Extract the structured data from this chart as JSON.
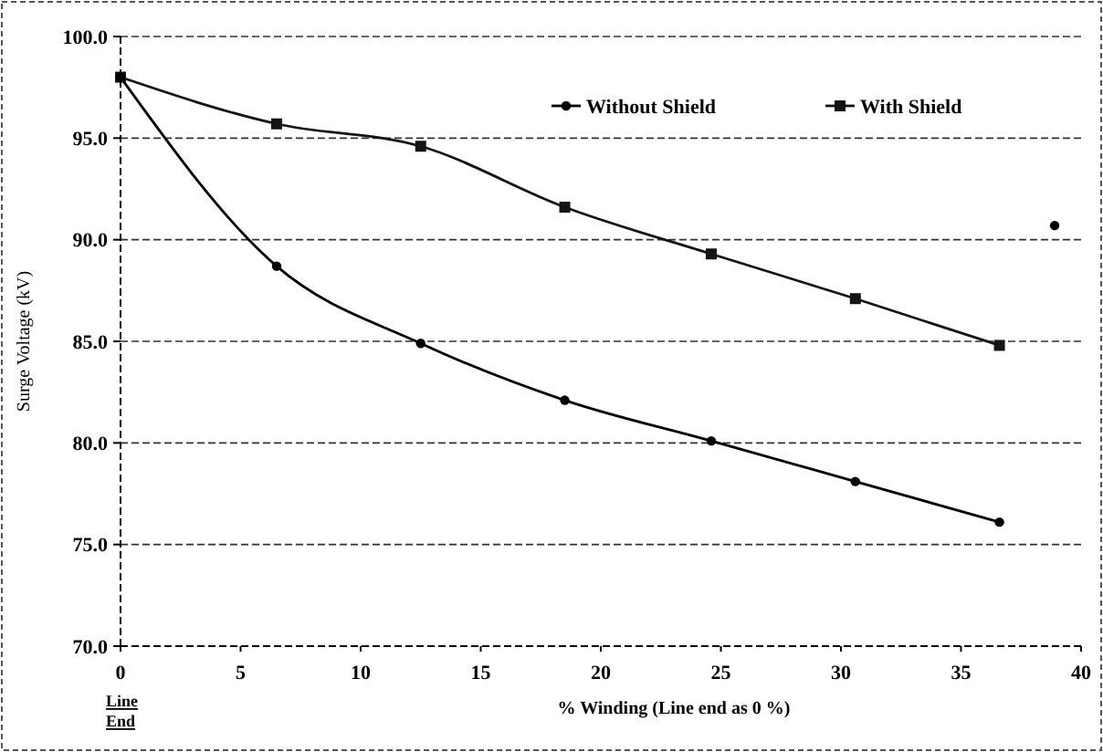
{
  "chart_data": {
    "type": "line",
    "xlabel": "% Winding (Line end as 0 %)",
    "ylabel": "Surge Voltage (kV)",
    "x": [
      0,
      6.5,
      12.5,
      18.5,
      24.6,
      30.6,
      36.6
    ],
    "series": [
      {
        "name": "Without Shield",
        "color": "#000000",
        "marker": "circle",
        "values": [
          98.0,
          88.7,
          84.9,
          82.1,
          80.1,
          78.1,
          76.1
        ]
      },
      {
        "name": "With Shield",
        "color": "#141414",
        "marker": "square",
        "values": [
          98.0,
          95.7,
          94.6,
          91.6,
          89.3,
          87.1,
          84.8
        ]
      },
      {
        "type": "scatter",
        "color": "#000000",
        "marker": "circle",
        "x": [
          38.9
        ],
        "values": [
          90.7
        ]
      }
    ],
    "xlim": [
      0,
      40
    ],
    "xticks": [
      0,
      5,
      10,
      15,
      20,
      25,
      30,
      35,
      40
    ],
    "ylim": [
      70,
      100
    ],
    "yticks": [
      {
        "value": 70,
        "label": "70.0"
      },
      {
        "value": 75,
        "label": "75.0"
      },
      {
        "value": 80,
        "label": "80.0"
      },
      {
        "value": 85,
        "label": "85.0"
      },
      {
        "value": 90,
        "label": "90.0"
      },
      {
        "value": 95,
        "label": "95.0"
      },
      {
        "value": 100,
        "label": "100.0"
      }
    ],
    "grid": "y",
    "line_style": "solid",
    "legend": "top right",
    "annotations": [
      "Line End"
    ]
  }
}
